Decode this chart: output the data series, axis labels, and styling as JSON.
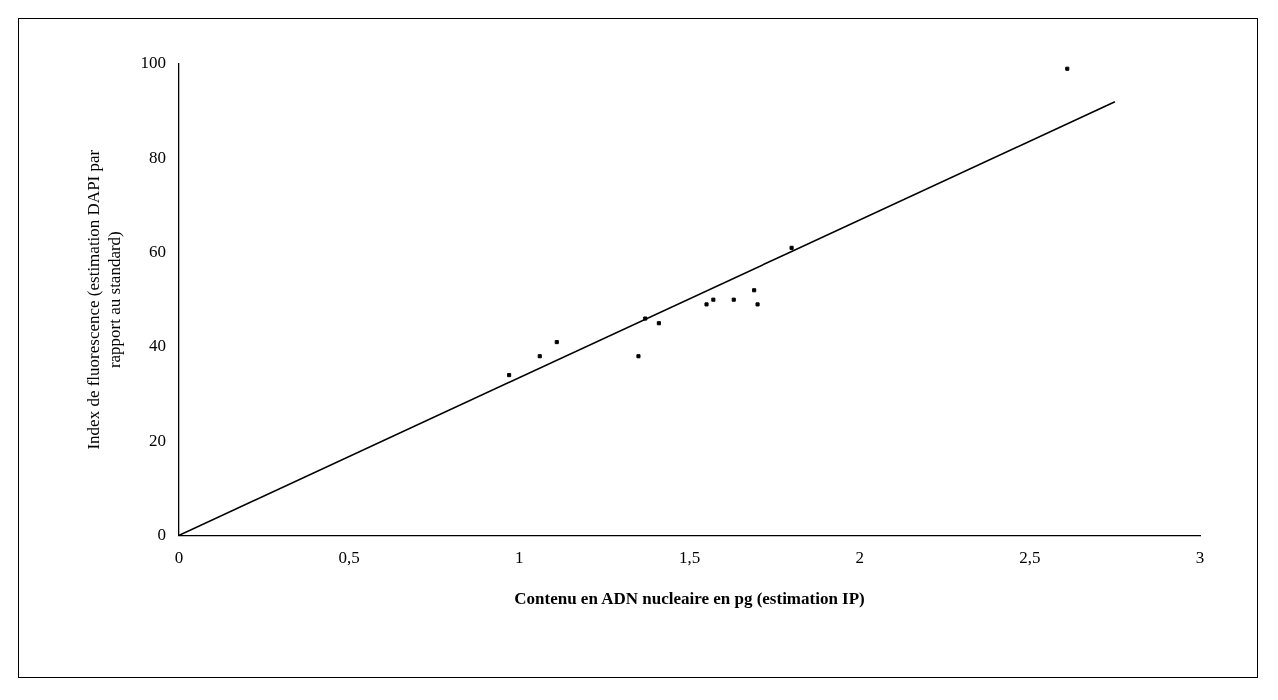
{
  "chart_data": {
    "type": "scatter",
    "xlabel": "Contenu en ADN nucleaire en pg (estimation IP)",
    "ylabel": "Index de fluorescence (estimation DAPI par\nrapport au standard)",
    "xlim": [
      0,
      3
    ],
    "xticks": [
      0,
      {
        "value": 0.5,
        "label": "0,5"
      },
      1,
      {
        "value": 1.5,
        "label": "1,5"
      },
      2,
      {
        "value": 2.5,
        "label": "2,5"
      },
      3
    ],
    "ylim": [
      0,
      100
    ],
    "yticks": [
      0,
      20,
      40,
      60,
      80,
      100
    ],
    "grid": false,
    "legend": false,
    "marker": "square",
    "series": [
      {
        "color": "#000000",
        "x": [
          0.97,
          1.06,
          1.11,
          1.35,
          1.37,
          1.41,
          1.55,
          1.57,
          1.63,
          1.69,
          1.7,
          1.8,
          2.61
        ],
        "values": [
          34,
          38,
          41,
          38,
          46,
          45,
          49,
          50,
          50,
          52,
          49,
          61,
          99
        ]
      },
      {
        "type": "line",
        "color": "#000000",
        "marker": "none",
        "line_style": "solid",
        "x": [
          0,
          2.75
        ],
        "values": [
          0,
          92
        ]
      }
    ]
  }
}
